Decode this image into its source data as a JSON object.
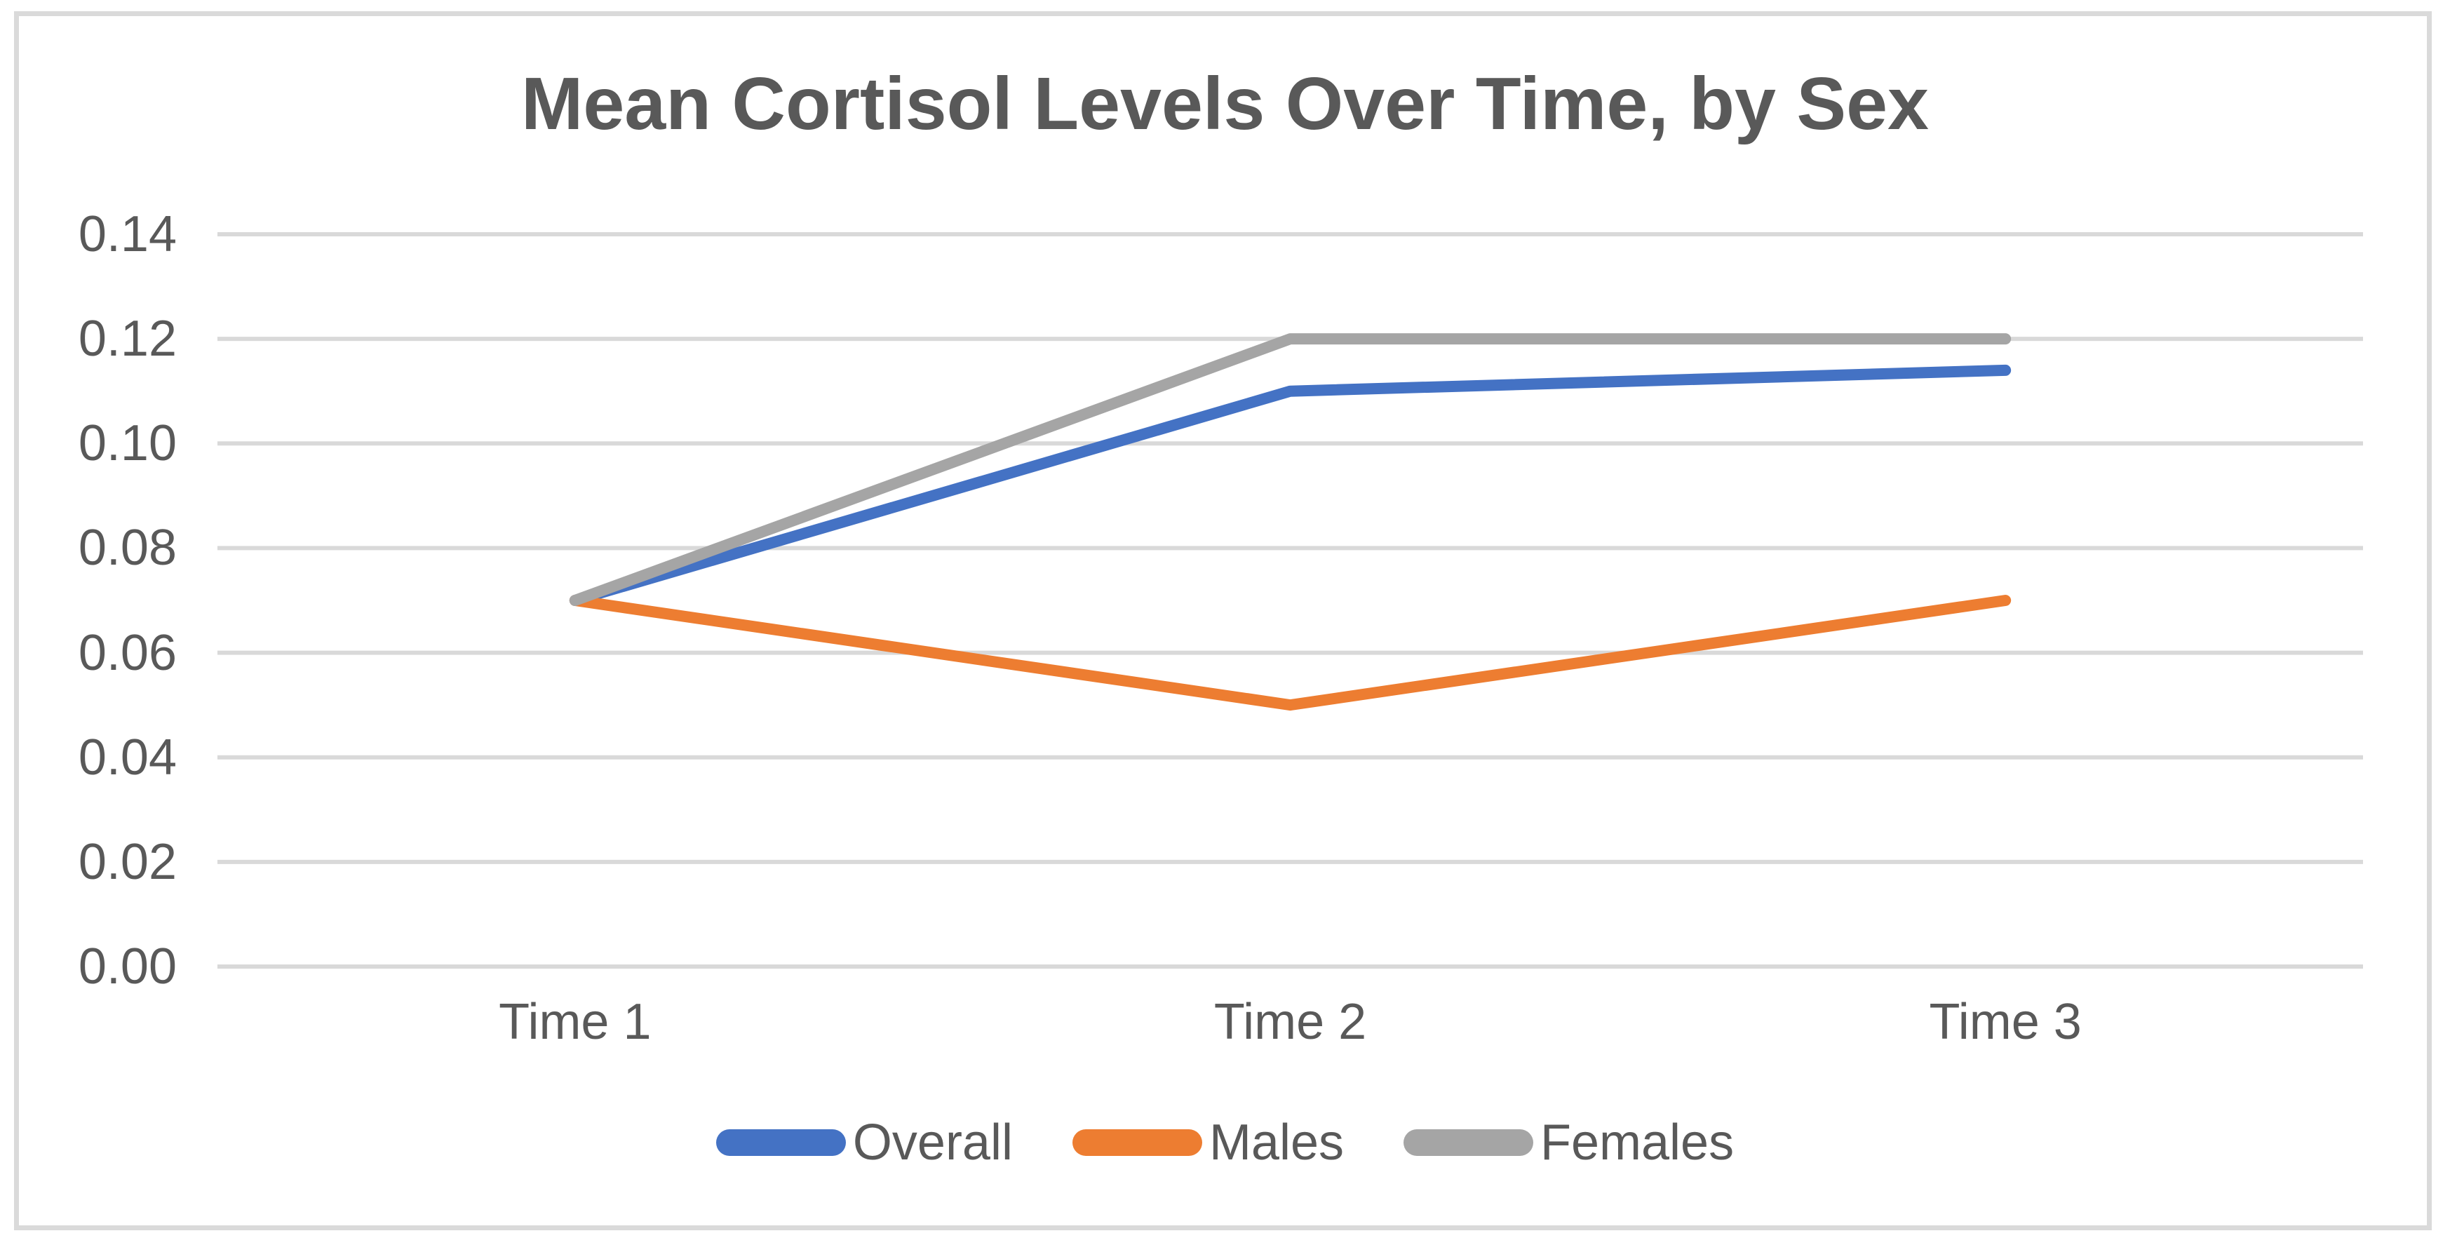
{
  "chart": {
    "title": "Mean Cortisol Levels Over Time, by Sex"
  },
  "chart_data": {
    "type": "line",
    "title": "Mean Cortisol Levels Over Time, by Sex",
    "categories": [
      "Time 1",
      "Time 2",
      "Time 3"
    ],
    "series": [
      {
        "name": "Overall",
        "color": "#4472C4",
        "values": [
          0.07,
          0.11,
          0.114
        ]
      },
      {
        "name": "Males",
        "color": "#ED7D31",
        "values": [
          0.07,
          0.05,
          0.07
        ]
      },
      {
        "name": "Females",
        "color": "#A5A5A5",
        "values": [
          0.07,
          0.12,
          0.12
        ]
      }
    ],
    "ylim": [
      0,
      0.14
    ],
    "ytick_step": 0.02,
    "ytick_labels": [
      "0.00",
      "0.02",
      "0.04",
      "0.06",
      "0.08",
      "0.10",
      "0.12",
      "0.14"
    ],
    "grid": true,
    "legend_position": "bottom",
    "xlabel": "",
    "ylabel": ""
  },
  "colors": {
    "grid": "#D9D9D9",
    "frame_border": "#DADADA",
    "text": "#595959"
  }
}
